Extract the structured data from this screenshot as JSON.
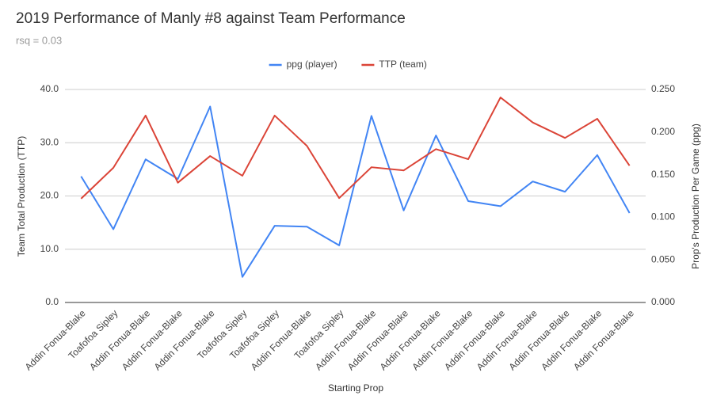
{
  "chart_data": {
    "type": "line",
    "title": "2019 Performance of Manly #8 against Team Performance",
    "subtitle": "rsq = 0.03",
    "x_label": "Starting Prop",
    "y_label": "Team Total Production (TTP)",
    "y2_label": "Prop's Production Per Game (ppg)",
    "categories": [
      "Addin Fonua-Blake",
      "Toafofoa Sipley",
      "Addin Fonua-Blake",
      "Addin Fonua-Blake",
      "Addin Fonua-Blake",
      "Toafofoa Sipley",
      "Toafofoa Sipley",
      "Addin Fonua-Blake",
      "Toafofoa Sipley",
      "Addin Fonua-Blake",
      "Addin Fonua-Blake",
      "Addin Fonua-Blake",
      "Addin Fonua-Blake",
      "Addin Fonua-Blake",
      "Addin Fonua-Blake",
      "Addin Fonua-Blake",
      "Addin Fonua-Blake",
      "Addin Fonua-Blake"
    ],
    "series": [
      {
        "name": "ppg (player)",
        "color": "#4285f4",
        "axis": "y2",
        "values": [
          0.148,
          0.086,
          0.168,
          0.145,
          0.23,
          0.03,
          0.09,
          0.089,
          0.067,
          0.219,
          0.108,
          0.196,
          0.119,
          0.113,
          0.142,
          0.13,
          0.173,
          0.105
        ]
      },
      {
        "name": "TTP (team)",
        "color": "#db4437",
        "values": [
          19.5,
          25.3,
          35.1,
          22.5,
          27.5,
          23.8,
          35.1,
          29.4,
          19.6,
          25.4,
          24.8,
          28.8,
          26.9,
          38.5,
          33.8,
          30.9,
          34.5,
          25.7
        ]
      }
    ],
    "ylim": [
      0,
      40
    ],
    "yticks": [
      {
        "value": 0,
        "label": "0.0"
      },
      {
        "value": 10,
        "label": "10.0"
      },
      {
        "value": 20,
        "label": "20.0"
      },
      {
        "value": 30,
        "label": "30.0"
      },
      {
        "value": 40,
        "label": "40.0"
      }
    ],
    "y2lim": [
      0,
      0.25
    ],
    "y2ticks": [
      {
        "value": 0,
        "label": "0.000"
      },
      {
        "value": 0.05,
        "label": "0.050"
      },
      {
        "value": 0.1,
        "label": "0.100"
      },
      {
        "value": 0.15,
        "label": "0.150"
      },
      {
        "value": 0.2,
        "label": "0.200"
      },
      {
        "value": 0.25,
        "label": "0.250"
      }
    ],
    "grid": true,
    "legend": "top"
  }
}
